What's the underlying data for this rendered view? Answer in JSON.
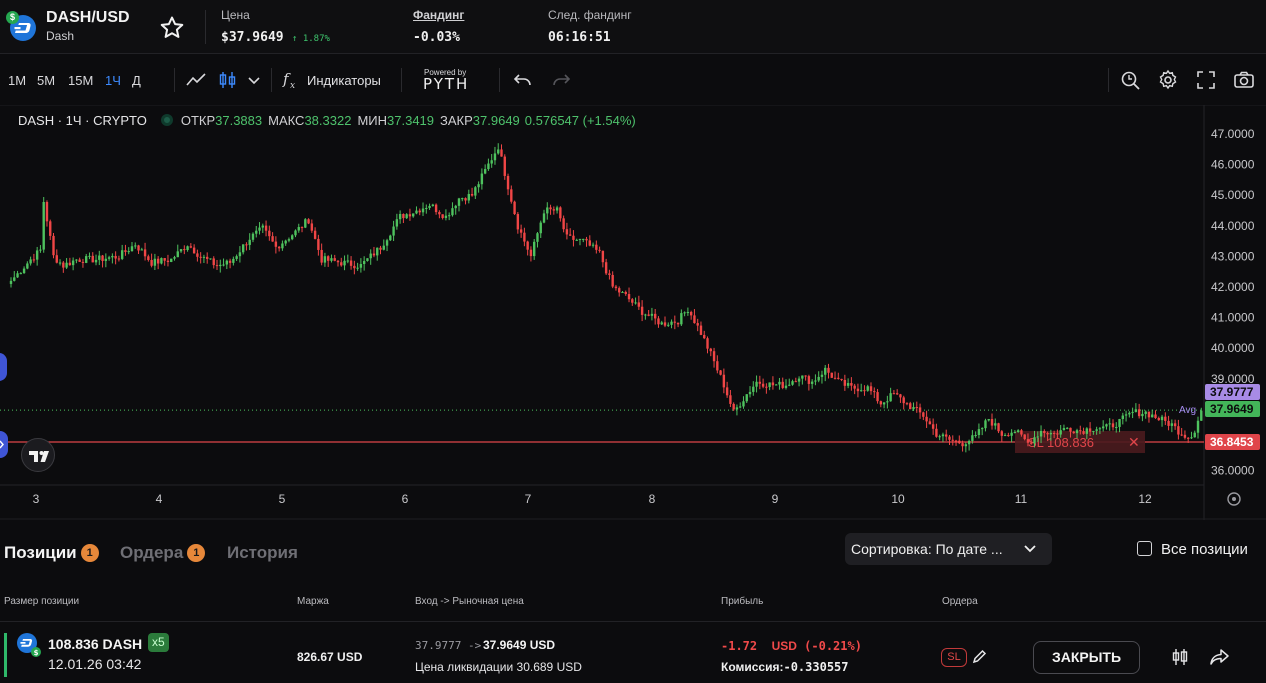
{
  "header": {
    "symbol": "DASH/USD",
    "name": "Dash",
    "price_label": "Цена",
    "price": "$37.9649",
    "change": "↑ 1.87%",
    "funding_label": "Фандинг",
    "funding": "-0.03%",
    "next_funding_label": "След. фандинг",
    "next_funding": "06:16:51"
  },
  "toolbar": {
    "timeframes": [
      "1M",
      "5M",
      "15M",
      "1Ч",
      "Д"
    ],
    "active_timeframe": "1Ч",
    "indicators_label": "Индикаторы",
    "powered_by": "Powered by",
    "pyth": "PYTH"
  },
  "legend": {
    "symbol": "DASH · 1Ч · CRYPTO",
    "open_label": "ОТКР",
    "open": "37.3883",
    "high_label": "МАКС",
    "high": "38.3322",
    "low_label": "МИН",
    "low": "37.3419",
    "close_label": "ЗАКР",
    "close": "37.9649",
    "change": "0.576547 (+1.54%)"
  },
  "chart_data": {
    "type": "candlestick",
    "x_ticks": [
      "3",
      "4",
      "5",
      "6",
      "7",
      "8",
      "9",
      "10",
      "11",
      "12"
    ],
    "y_ticks": [
      "47.0000",
      "46.0000",
      "45.0000",
      "44.0000",
      "43.0000",
      "42.0000",
      "41.0000",
      "40.0000",
      "39.0000",
      "36.0000"
    ],
    "ylim": [
      35.5,
      47.4
    ],
    "avg_label": "Avg",
    "avg_price": "37.9777",
    "last_price": "37.9649",
    "sl_price": "36.8453",
    "sl_line_label": "SL 108.836",
    "sl_close": "✕",
    "up_color": "#4ec25e",
    "down_color": "#f04646",
    "anchors": [
      [
        0,
        42.2
      ],
      [
        6,
        42.9
      ],
      [
        9,
        43.2
      ],
      [
        10,
        44.8
      ],
      [
        13,
        43.0
      ],
      [
        16,
        42.7
      ],
      [
        20,
        42.9
      ],
      [
        26,
        42.9
      ],
      [
        33,
        43.0
      ],
      [
        38,
        43.4
      ],
      [
        43,
        42.8
      ],
      [
        49,
        42.9
      ],
      [
        54,
        43.4
      ],
      [
        58,
        43.0
      ],
      [
        63,
        42.7
      ],
      [
        67,
        42.8
      ],
      [
        73,
        43.6
      ],
      [
        77,
        43.9
      ],
      [
        81,
        43.3
      ],
      [
        87,
        43.8
      ],
      [
        91,
        44.2
      ],
      [
        95,
        42.9
      ],
      [
        101,
        42.8
      ],
      [
        107,
        42.7
      ],
      [
        113,
        43.3
      ],
      [
        119,
        44.3
      ],
      [
        124,
        44.5
      ],
      [
        128,
        44.7
      ],
      [
        133,
        44.3
      ],
      [
        137,
        44.9
      ],
      [
        141,
        45.0
      ],
      [
        145,
        45.8
      ],
      [
        149,
        46.6
      ],
      [
        152,
        45.3
      ],
      [
        155,
        44.0
      ],
      [
        159,
        43.0
      ],
      [
        163,
        44.5
      ],
      [
        167,
        44.5
      ],
      [
        170,
        43.6
      ],
      [
        175,
        43.5
      ],
      [
        180,
        43.1
      ],
      [
        184,
        42.0
      ],
      [
        188,
        41.7
      ],
      [
        193,
        41.2
      ],
      [
        199,
        40.8
      ],
      [
        204,
        40.9
      ],
      [
        207,
        41.3
      ],
      [
        211,
        40.5
      ],
      [
        214,
        39.8
      ],
      [
        218,
        38.8
      ],
      [
        221,
        37.9
      ],
      [
        225,
        38.5
      ],
      [
        228,
        38.9
      ],
      [
        233,
        38.8
      ],
      [
        237,
        38.8
      ],
      [
        241,
        39.1
      ],
      [
        245,
        38.9
      ],
      [
        249,
        39.3
      ],
      [
        253,
        38.9
      ],
      [
        257,
        38.7
      ],
      [
        262,
        38.7
      ],
      [
        266,
        38.2
      ],
      [
        270,
        38.5
      ],
      [
        275,
        38.1
      ],
      [
        279,
        37.8
      ],
      [
        283,
        37.2
      ],
      [
        287,
        37.0
      ],
      [
        291,
        36.9
      ],
      [
        295,
        37.1
      ],
      [
        299,
        37.7
      ],
      [
        303,
        37.2
      ],
      [
        307,
        37.3
      ],
      [
        311,
        36.9
      ],
      [
        315,
        37.3
      ],
      [
        319,
        37.2
      ],
      [
        323,
        37.4
      ],
      [
        327,
        37.3
      ],
      [
        331,
        37.4
      ],
      [
        335,
        37.4
      ],
      [
        339,
        37.6
      ],
      [
        343,
        37.9
      ],
      [
        347,
        37.9
      ],
      [
        351,
        37.7
      ],
      [
        355,
        37.5
      ],
      [
        357,
        37.3
      ],
      [
        360,
        37.1
      ],
      [
        362,
        37.3
      ],
      [
        364,
        37.96
      ]
    ]
  },
  "panel": {
    "tab_positions": "Позиции",
    "positions_count": "1",
    "tab_orders": "Ордера",
    "orders_count": "1",
    "tab_history": "История",
    "sort_label": "Сортировка: По дате ...",
    "all_positions": "Все позиции",
    "col_size": "Размер позиции",
    "col_margin": "Маржа",
    "col_entry": "Вход -> Рыночная цена",
    "col_pnl": "Прибыль",
    "col_orders": "Ордера"
  },
  "position": {
    "size": "108.836 DASH",
    "leverage": "x5",
    "date": "12.01.26 03:42",
    "margin": "826.67 USD",
    "entry": "37.9777 ->",
    "market": "37.9649 USD",
    "liq_label": "Цена ликвидации",
    "liq": "30.689 USD",
    "pnl": "-1.72",
    "pnl_unit": "USD",
    "pnl_pct": "(-0.21%)",
    "fee_label": "Комиссия:",
    "fee": "-0.330557",
    "sl_badge": "SL",
    "close_label": "ЗАКРЫТЬ"
  }
}
